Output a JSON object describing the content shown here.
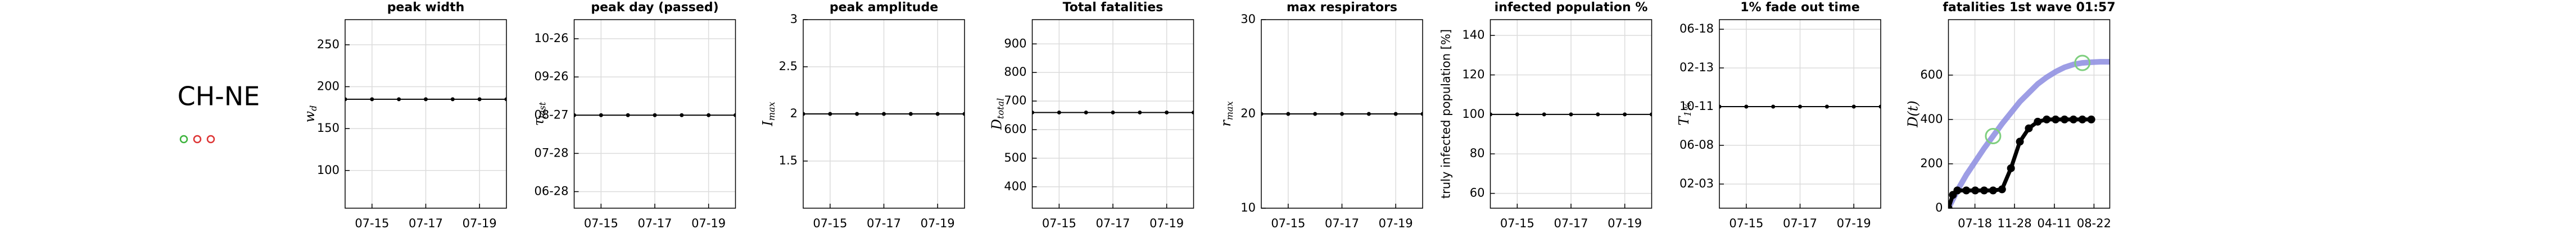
{
  "label": "CH-NE",
  "chart_data": [
    {
      "type": "line",
      "title": "peak width",
      "ylabel": "w",
      "ylabel_sub": "d",
      "x": [
        "07-14",
        "07-15",
        "07-16",
        "07-17",
        "07-18",
        "07-19",
        "07-20"
      ],
      "xlim": [
        "07-14",
        "07-20"
      ],
      "xticks": [
        "07-15",
        "07-17",
        "07-19"
      ],
      "series": [
        {
          "color": "#000000",
          "values": [
            185,
            185,
            185,
            185,
            185,
            185,
            185
          ]
        }
      ],
      "ylim": [
        55,
        280
      ],
      "yticks": [
        100,
        150,
        200,
        250
      ],
      "grid": true
    },
    {
      "type": "line",
      "title": "peak day (passed)",
      "ylabel": "τ",
      "ylabel_sub": "last",
      "x": [
        "07-14",
        "07-15",
        "07-16",
        "07-17",
        "07-18",
        "07-19",
        "07-20"
      ],
      "xlim": [
        "07-14",
        "07-20"
      ],
      "xticks": [
        "07-15",
        "07-17",
        "07-19"
      ],
      "series": [
        {
          "color": "#000000",
          "values": [
            "08-27",
            "08-27",
            "08-27",
            "08-27",
            "08-27",
            "08-27",
            "08-27"
          ]
        }
      ],
      "ylim": [
        "06-15",
        "11-10"
      ],
      "yticks": [
        "06-28",
        "07-28",
        "08-27",
        "09-26",
        "10-26"
      ],
      "grid": true
    },
    {
      "type": "line",
      "title": "peak amplitude",
      "ylabel": "I",
      "ylabel_sub": "max",
      "x": [
        "07-14",
        "07-15",
        "07-16",
        "07-17",
        "07-18",
        "07-19",
        "07-20"
      ],
      "xlim": [
        "07-14",
        "07-20"
      ],
      "xticks": [
        "07-15",
        "07-17",
        "07-19"
      ],
      "series": [
        {
          "color": "#000000",
          "values": [
            2,
            2,
            2,
            2,
            2,
            2,
            2
          ]
        }
      ],
      "ylim": [
        1.0,
        3.0
      ],
      "yticks": [
        1.5,
        2,
        2.5,
        3
      ],
      "grid": true
    },
    {
      "type": "line",
      "title": "Total fatalities",
      "ylabel": "D",
      "ylabel_sub": "total",
      "x": [
        "07-14",
        "07-15",
        "07-16",
        "07-17",
        "07-18",
        "07-19",
        "07-20"
      ],
      "xlim": [
        "07-14",
        "07-20"
      ],
      "xticks": [
        "07-15",
        "07-17",
        "07-19"
      ],
      "series": [
        {
          "color": "#000000",
          "values": [
            660,
            660,
            660,
            660,
            660,
            660,
            660
          ]
        }
      ],
      "ylim": [
        325,
        985
      ],
      "yticks": [
        400,
        500,
        600,
        700,
        800,
        900
      ],
      "grid": true
    },
    {
      "type": "line",
      "title": "max respirators",
      "ylabel": "r",
      "ylabel_sub": "max",
      "x": [
        "07-14",
        "07-15",
        "07-16",
        "07-17",
        "07-18",
        "07-19",
        "07-20"
      ],
      "xlim": [
        "07-14",
        "07-20"
      ],
      "xticks": [
        "07-15",
        "07-17",
        "07-19"
      ],
      "series": [
        {
          "color": "#000000",
          "values": [
            20,
            20,
            20,
            20,
            20,
            20,
            20
          ]
        }
      ],
      "ylim": [
        10,
        30
      ],
      "yticks": [
        10,
        20,
        30
      ],
      "grid": true
    },
    {
      "type": "line",
      "title": "infected population %",
      "ylabel": "truly infected population [%]",
      "x": [
        "07-14",
        "07-15",
        "07-16",
        "07-17",
        "07-18",
        "07-19",
        "07-20"
      ],
      "xlim": [
        "07-14",
        "07-20"
      ],
      "xticks": [
        "07-15",
        "07-17",
        "07-19"
      ],
      "series": [
        {
          "color": "#000000",
          "values": [
            100,
            100,
            100,
            100,
            100,
            100,
            100
          ]
        }
      ],
      "ylim": [
        52.5,
        148
      ],
      "yticks": [
        60,
        80,
        100,
        120,
        140
      ],
      "grid": true
    },
    {
      "type": "line",
      "title": "1% fade out time",
      "ylabel": "T",
      "ylabel_sub": "1%",
      "x": [
        "07-14",
        "07-15",
        "07-16",
        "07-17",
        "07-18",
        "07-19",
        "07-20"
      ],
      "xlim": [
        "07-14",
        "07-20"
      ],
      "xticks": [
        "07-15",
        "07-17",
        "07-19"
      ],
      "series": [
        {
          "color": "#000000",
          "values": [
            "10-11",
            "10-11",
            "10-11",
            "10-11",
            "10-11",
            "10-11",
            "10-11"
          ]
        }
      ],
      "ylim": [
        "11-17",
        "07-19"
      ],
      "yticks": [
        "02-03",
        "06-08",
        "10-11",
        "02-13",
        "06-18"
      ],
      "grid": true
    },
    {
      "type": "line",
      "title": "fatalities 1st wave 01:57",
      "ylabel": "D(t)",
      "x": [
        "04-20",
        "05-05",
        "05-20",
        "06-19",
        "07-19",
        "08-18",
        "09-17",
        "10-17",
        "11-16",
        "12-16",
        "01-15",
        "02-14",
        "03-16",
        "04-15",
        "05-15",
        "06-14",
        "07-14",
        "08-13",
        "09-12",
        "10-12"
      ],
      "xlim": [
        "04-20",
        "10-14"
      ],
      "xticks": [
        "07-18",
        "11-28",
        "04-11",
        "08-22"
      ],
      "series": [
        {
          "color": "#8c8ce0",
          "width": 10,
          "values": [
            0,
            40,
            80,
            150,
            210,
            270,
            325,
            380,
            430,
            480,
            520,
            560,
            590,
            615,
            635,
            648,
            655,
            658,
            660,
            660
          ]
        },
        {
          "color": "#000000",
          "width": 7,
          "marker": true,
          "values": [
            0,
            60,
            80,
            80,
            80,
            80,
            80,
            85,
            180,
            300,
            360,
            390,
            400,
            400,
            400,
            400,
            400,
            400,
            null,
            null
          ]
        },
        {
          "color": "#7fcf7f",
          "style": "circle",
          "values": [
            null,
            null,
            null,
            null,
            null,
            null,
            325,
            null,
            null,
            null,
            null,
            null,
            null,
            null,
            null,
            null,
            655,
            null,
            null,
            null
          ]
        }
      ],
      "ylim": [
        0,
        850
      ],
      "yticks": [
        0,
        200,
        400,
        600
      ],
      "grid": true
    }
  ]
}
